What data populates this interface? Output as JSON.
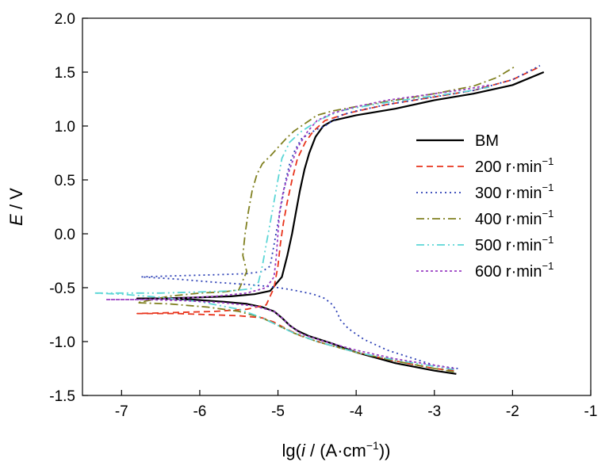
{
  "chart_data": {
    "type": "line",
    "title": "",
    "xlabel": "lg(i / (A·cm⁻¹))",
    "xlabel_parts": [
      "lg(",
      "i",
      " / (A·cm",
      "−1",
      "))"
    ],
    "ylabel": "E / V",
    "ylabel_parts": [
      "E",
      " / V"
    ],
    "xlim": [
      -7.5,
      -1
    ],
    "ylim": [
      -1.5,
      2.0
    ],
    "xticks": [
      -7,
      -6,
      -5,
      -4,
      -3,
      -2,
      -1
    ],
    "yticks": [
      -1.5,
      -1.0,
      -0.5,
      0.0,
      0.5,
      1.0,
      1.5,
      2.0
    ],
    "xtick_labels": [
      "-7",
      "-6",
      "-5",
      "-4",
      "-3",
      "-2",
      "-1"
    ],
    "ytick_labels": [
      "-1.5",
      "-1.0",
      "-0.5",
      "0.0",
      "0.5",
      "1.0",
      "1.5",
      "2.0"
    ],
    "grid": false,
    "legend_position": "right",
    "series": [
      {
        "name": "BM",
        "name_parts": [
          "BM",
          ""
        ],
        "color": "#000000",
        "dash": "solid",
        "x": [
          -2.72,
          -3.0,
          -3.5,
          -4.0,
          -4.3,
          -4.6,
          -4.75,
          -4.85,
          -4.95,
          -5.05,
          -5.2,
          -5.4,
          -5.7,
          -6.1,
          -6.5,
          -6.8,
          -6.5,
          -6.0,
          -5.6,
          -5.3,
          -5.1,
          -4.95,
          -4.88,
          -4.82,
          -4.77,
          -4.72,
          -4.66,
          -4.6,
          -4.52,
          -4.42,
          -4.3,
          -4.0,
          -3.5,
          -3.0,
          -2.5,
          -2.0,
          -1.6
        ],
        "y": [
          -1.3,
          -1.27,
          -1.2,
          -1.1,
          -1.02,
          -0.95,
          -0.9,
          -0.85,
          -0.78,
          -0.72,
          -0.68,
          -0.65,
          -0.63,
          -0.61,
          -0.6,
          -0.6,
          -0.6,
          -0.59,
          -0.58,
          -0.56,
          -0.53,
          -0.4,
          -0.2,
          0.0,
          0.2,
          0.4,
          0.6,
          0.75,
          0.9,
          1.0,
          1.05,
          1.1,
          1.16,
          1.24,
          1.3,
          1.38,
          1.5
        ]
      },
      {
        "name": "200 r·min−1",
        "name_parts": [
          "200 r·min",
          "−1"
        ],
        "color": "#e8341c",
        "dash": "8,5",
        "x": [
          -2.75,
          -3.0,
          -3.5,
          -4.0,
          -4.4,
          -4.7,
          -4.9,
          -5.05,
          -5.2,
          -5.5,
          -5.9,
          -6.3,
          -6.8,
          -6.3,
          -5.8,
          -5.4,
          -5.15,
          -5.05,
          -5.0,
          -4.97,
          -4.93,
          -4.88,
          -4.82,
          -4.75,
          -4.65,
          -4.55,
          -4.4,
          -4.1,
          -3.6,
          -3.0,
          -2.5,
          -2.0,
          -1.65
        ],
        "y": [
          -1.27,
          -1.25,
          -1.18,
          -1.1,
          -1.02,
          -0.95,
          -0.88,
          -0.82,
          -0.78,
          -0.76,
          -0.75,
          -0.74,
          -0.74,
          -0.73,
          -0.72,
          -0.7,
          -0.66,
          -0.5,
          -0.3,
          -0.1,
          0.1,
          0.3,
          0.5,
          0.7,
          0.85,
          0.95,
          1.05,
          1.12,
          1.2,
          1.27,
          1.33,
          1.43,
          1.55
        ]
      },
      {
        "name": "300 r·min−1",
        "name_parts": [
          "300 r·min",
          "−1"
        ],
        "color": "#2b3fb5",
        "dash": "2,4",
        "x": [
          -2.7,
          -3.0,
          -3.3,
          -3.6,
          -3.9,
          -4.1,
          -4.2,
          -4.25,
          -4.3,
          -4.4,
          -4.55,
          -4.75,
          -4.9,
          -5.0,
          -5.1,
          -5.4,
          -5.8,
          -6.3,
          -6.75,
          -6.3,
          -5.8,
          -5.4,
          -5.2,
          -5.1,
          -5.05,
          -5.0,
          -4.95,
          -4.9,
          -4.85,
          -4.78,
          -4.7,
          -4.6,
          -4.5,
          -4.4,
          -4.3,
          -4.2,
          -4.0,
          -3.6,
          -3.0,
          -2.5,
          -2.0,
          -1.65
        ],
        "y": [
          -1.25,
          -1.22,
          -1.15,
          -1.08,
          -0.98,
          -0.88,
          -0.8,
          -0.72,
          -0.66,
          -0.6,
          -0.56,
          -0.53,
          -0.51,
          -0.5,
          -0.49,
          -0.47,
          -0.45,
          -0.42,
          -0.4,
          -0.39,
          -0.38,
          -0.37,
          -0.35,
          -0.3,
          -0.1,
          0.1,
          0.3,
          0.5,
          0.65,
          0.78,
          0.88,
          0.93,
          0.97,
          1.0,
          1.05,
          1.1,
          1.14,
          1.2,
          1.27,
          1.33,
          1.43,
          1.56
        ]
      },
      {
        "name": "400 r·min−1",
        "name_parts": [
          "400 r·min",
          "−1"
        ],
        "color": "#808020",
        "dash": "10,4,2,4",
        "x": [
          -2.75,
          -3.0,
          -3.5,
          -4.0,
          -4.5,
          -4.8,
          -5.0,
          -5.2,
          -5.5,
          -5.9,
          -6.4,
          -6.8,
          -6.4,
          -6.0,
          -5.7,
          -5.5,
          -5.4,
          -5.45,
          -5.42,
          -5.38,
          -5.33,
          -5.27,
          -5.2,
          -5.1,
          -5.0,
          -4.9,
          -4.8,
          -4.7,
          -4.6,
          -4.5,
          -4.3,
          -4.0,
          -3.5,
          -3.0,
          -2.5,
          -2.2,
          -1.95
        ],
        "y": [
          -1.28,
          -1.25,
          -1.18,
          -1.1,
          -1.0,
          -0.92,
          -0.85,
          -0.78,
          -0.72,
          -0.68,
          -0.65,
          -0.64,
          -0.58,
          -0.55,
          -0.54,
          -0.52,
          -0.35,
          -0.2,
          0.0,
          0.2,
          0.4,
          0.55,
          0.65,
          0.72,
          0.8,
          0.88,
          0.95,
          1.0,
          1.05,
          1.1,
          1.14,
          1.18,
          1.24,
          1.3,
          1.37,
          1.45,
          1.56
        ]
      },
      {
        "name": "500 r·min−1",
        "name_parts": [
          "500 r·min",
          "−1"
        ],
        "color": "#5cd6d6",
        "dash": "10,4,2,4,2,4",
        "x": [
          -2.75,
          -3.0,
          -3.5,
          -4.0,
          -4.5,
          -4.8,
          -5.0,
          -5.2,
          -5.5,
          -6.0,
          -6.5,
          -7.0,
          -7.35,
          -7.0,
          -6.5,
          -6.0,
          -5.6,
          -5.35,
          -5.25,
          -5.2,
          -5.15,
          -5.1,
          -5.05,
          -5.0,
          -4.95,
          -4.85,
          -4.7,
          -4.55,
          -4.4,
          -4.2,
          -4.0,
          -3.6,
          -3.0,
          -2.6,
          -2.3
        ],
        "y": [
          -1.26,
          -1.23,
          -1.17,
          -1.1,
          -1.0,
          -0.92,
          -0.85,
          -0.78,
          -0.7,
          -0.63,
          -0.59,
          -0.56,
          -0.55,
          -0.55,
          -0.55,
          -0.54,
          -0.53,
          -0.51,
          -0.45,
          -0.3,
          -0.1,
          0.1,
          0.3,
          0.5,
          0.7,
          0.85,
          0.95,
          1.02,
          1.08,
          1.14,
          1.17,
          1.22,
          1.28,
          1.32,
          1.36
        ]
      },
      {
        "name": "600 r·min−1",
        "name_parts": [
          "600 r·min",
          "−1"
        ],
        "color": "#9a3fc2",
        "dash": "3,3",
        "x": [
          -2.75,
          -3.0,
          -3.5,
          -4.0,
          -4.4,
          -4.7,
          -4.85,
          -4.95,
          -5.05,
          -5.3,
          -5.7,
          -6.2,
          -6.7,
          -7.2,
          -6.8,
          -6.3,
          -5.8,
          -5.4,
          -5.15,
          -5.05,
          -5.02,
          -5.0,
          -4.98,
          -4.93,
          -4.85,
          -4.75,
          -4.62,
          -4.5,
          -4.3,
          -4.0,
          -3.6,
          -3.0,
          -2.6,
          -2.3
        ],
        "y": [
          -1.25,
          -1.22,
          -1.16,
          -1.08,
          -1.0,
          -0.93,
          -0.85,
          -0.78,
          -0.72,
          -0.67,
          -0.64,
          -0.62,
          -0.61,
          -0.61,
          -0.61,
          -0.6,
          -0.58,
          -0.55,
          -0.5,
          -0.4,
          -0.2,
          0.0,
          0.2,
          0.4,
          0.6,
          0.8,
          0.95,
          1.05,
          1.12,
          1.18,
          1.24,
          1.3,
          1.34,
          1.38
        ]
      }
    ]
  }
}
